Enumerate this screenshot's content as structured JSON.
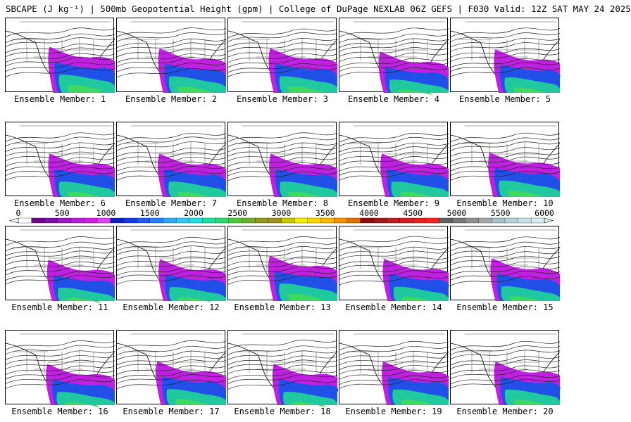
{
  "header": {
    "title": "SBCAPE (J kg⁻¹) | 500mb Geopotential Height (gpm) | College of DuPage NEXLAB 06Z GEFS | F030 Valid: 12Z SAT MAY 24 2025"
  },
  "panels": [
    {
      "label": "Ensemble Member: 1"
    },
    {
      "label": "Ensemble Member: 2"
    },
    {
      "label": "Ensemble Member: 3"
    },
    {
      "label": "Ensemble Member: 4"
    },
    {
      "label": "Ensemble Member: 5"
    },
    {
      "label": "Ensemble Member: 6"
    },
    {
      "label": "Ensemble Member: 7"
    },
    {
      "label": "Ensemble Member: 8"
    },
    {
      "label": "Ensemble Member: 9"
    },
    {
      "label": "Ensemble Member: 10"
    },
    {
      "label": "Ensemble Member: 11"
    },
    {
      "label": "Ensemble Member: 12"
    },
    {
      "label": "Ensemble Member: 13"
    },
    {
      "label": "Ensemble Member: 14"
    },
    {
      "label": "Ensemble Member: 15"
    },
    {
      "label": "Ensemble Member: 16"
    },
    {
      "label": "Ensemble Member: 17"
    },
    {
      "label": "Ensemble Member: 18"
    },
    {
      "label": "Ensemble Member: 19"
    },
    {
      "label": "Ensemble Member: 20"
    }
  ],
  "colorbar": {
    "ticks": [
      "0",
      "500",
      "1000",
      "1500",
      "2000",
      "2500",
      "3000",
      "3500",
      "4000",
      "4500",
      "5000",
      "5500",
      "6000"
    ],
    "colors": [
      "#ffffff",
      "#6a0a8a",
      "#7a10a8",
      "#9a18c8",
      "#b420d8",
      "#d020e8",
      "#e040f8",
      "#1020c0",
      "#1838e0",
      "#2058f0",
      "#2880f8",
      "#30a8f8",
      "#38c8f8",
      "#20e0e0",
      "#20e0a0",
      "#30d870",
      "#50c840",
      "#70b030",
      "#909820",
      "#a09020",
      "#c8c800",
      "#f0f000",
      "#f8d800",
      "#f8b800",
      "#f89000",
      "#e07000",
      "#8a1010",
      "#a01818",
      "#b82020",
      "#d02020",
      "#e82020",
      "#f82020",
      "#606060",
      "#787878",
      "#909090",
      "#a8a8a8",
      "#a8c0c8",
      "#b8d0d8",
      "#c8e0e8",
      "#d8ecf0"
    ]
  }
}
